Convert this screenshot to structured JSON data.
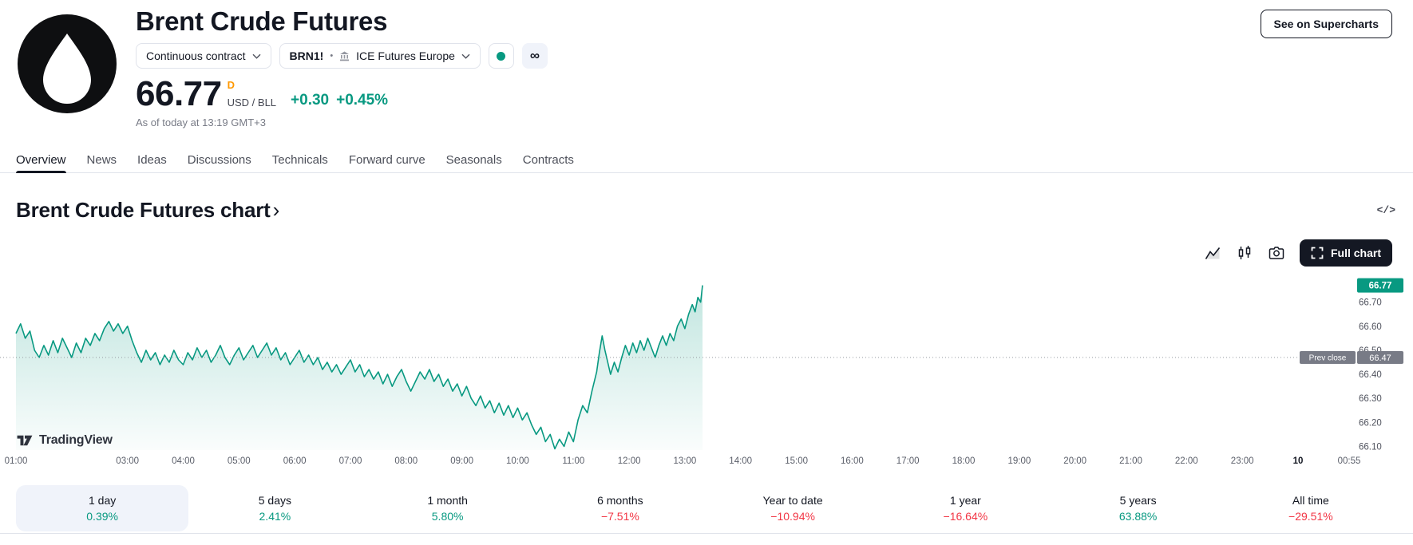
{
  "header": {
    "title": "Brent Crude Futures",
    "logo_icon": "oil-drop-icon",
    "contract_dropdown_label": "Continuous contract",
    "symbol": "BRN1!",
    "symbol_separator": "•",
    "exchange": "ICE Futures Europe",
    "market_status_icon": "market-open-green-dot",
    "continuous_glyph": "∞",
    "price": "66.77",
    "session_letter": "D",
    "currency_unit": "USD / BLL",
    "change_abs": "+0.30",
    "change_pct": "+0.45%",
    "as_of": "As of today at 13:19 GMT+3",
    "see_on_supercharts": "See on Supercharts"
  },
  "tabs": [
    {
      "label": "Overview",
      "active": true
    },
    {
      "label": "News"
    },
    {
      "label": "Ideas"
    },
    {
      "label": "Discussions"
    },
    {
      "label": "Technicals"
    },
    {
      "label": "Forward curve"
    },
    {
      "label": "Seasonals"
    },
    {
      "label": "Contracts"
    }
  ],
  "section": {
    "title": "Brent Crude Futures chart",
    "chevron": "›",
    "embed_icon": "code-embed-icon"
  },
  "chart_toolbar": {
    "full_chart_label": "Full chart"
  },
  "watermark": {
    "label": "TradingView"
  },
  "colors": {
    "positive": "#089981",
    "negative": "#f23645",
    "session_letter": "#ff9800",
    "last_price_badge": "#089981",
    "prev_close_badge": "#787b86",
    "active_tab_underline": "#131722"
  },
  "chart_data": {
    "type": "area",
    "symbol": "BRN1!",
    "title": "Brent Crude Futures chart",
    "x_unit": "minutes since 00:00, today",
    "x_domain_minutes": [
      60,
      1495
    ],
    "y_domain": [
      66.085,
      66.855
    ],
    "last_price": 66.77,
    "prev_close": 66.47,
    "prev_close_label": "Prev close",
    "line_color": "#089981",
    "fill_top": "rgba(8,153,129,0.25)",
    "fill_bottom": "rgba(8,153,129,0.02)",
    "prev_close_color": "#787b86",
    "grid": false,
    "y_ticks": [
      66.7,
      66.6,
      66.5,
      66.4,
      66.3,
      66.2,
      66.1
    ],
    "x_ticks": [
      {
        "label": "01:00",
        "t": 60
      },
      {
        "label": "03:00",
        "t": 180
      },
      {
        "label": "04:00",
        "t": 240
      },
      {
        "label": "05:00",
        "t": 300
      },
      {
        "label": "06:00",
        "t": 360
      },
      {
        "label": "07:00",
        "t": 420
      },
      {
        "label": "08:00",
        "t": 480
      },
      {
        "label": "09:00",
        "t": 540
      },
      {
        "label": "10:00",
        "t": 600
      },
      {
        "label": "11:00",
        "t": 660
      },
      {
        "label": "12:00",
        "t": 720
      },
      {
        "label": "13:00",
        "t": 780
      },
      {
        "label": "14:00",
        "t": 840
      },
      {
        "label": "15:00",
        "t": 900
      },
      {
        "label": "16:00",
        "t": 960
      },
      {
        "label": "17:00",
        "t": 1020
      },
      {
        "label": "18:00",
        "t": 1080
      },
      {
        "label": "19:00",
        "t": 1140
      },
      {
        "label": "20:00",
        "t": 1200
      },
      {
        "label": "21:00",
        "t": 1260
      },
      {
        "label": "22:00",
        "t": 1320
      },
      {
        "label": "23:00",
        "t": 1380
      },
      {
        "label": "10",
        "t": 1440,
        "major": true
      },
      {
        "label": "00:55",
        "t": 1495
      }
    ],
    "points": [
      [
        60,
        66.57
      ],
      [
        65,
        66.61
      ],
      [
        70,
        66.55
      ],
      [
        75,
        66.58
      ],
      [
        80,
        66.5
      ],
      [
        85,
        66.47
      ],
      [
        90,
        66.52
      ],
      [
        95,
        66.48
      ],
      [
        100,
        66.54
      ],
      [
        105,
        66.49
      ],
      [
        110,
        66.55
      ],
      [
        115,
        66.51
      ],
      [
        120,
        66.47
      ],
      [
        125,
        66.53
      ],
      [
        130,
        66.49
      ],
      [
        135,
        66.55
      ],
      [
        140,
        66.52
      ],
      [
        145,
        66.57
      ],
      [
        150,
        66.54
      ],
      [
        155,
        66.59
      ],
      [
        160,
        66.62
      ],
      [
        165,
        66.58
      ],
      [
        170,
        66.61
      ],
      [
        175,
        66.57
      ],
      [
        180,
        66.6
      ],
      [
        185,
        66.54
      ],
      [
        190,
        66.49
      ],
      [
        195,
        66.45
      ],
      [
        200,
        66.5
      ],
      [
        205,
        66.46
      ],
      [
        210,
        66.49
      ],
      [
        215,
        66.44
      ],
      [
        220,
        66.48
      ],
      [
        225,
        66.45
      ],
      [
        230,
        66.5
      ],
      [
        235,
        66.46
      ],
      [
        240,
        66.44
      ],
      [
        245,
        66.49
      ],
      [
        250,
        66.46
      ],
      [
        255,
        66.51
      ],
      [
        260,
        66.47
      ],
      [
        265,
        66.5
      ],
      [
        270,
        66.45
      ],
      [
        275,
        66.48
      ],
      [
        280,
        66.52
      ],
      [
        285,
        66.47
      ],
      [
        290,
        66.44
      ],
      [
        295,
        66.48
      ],
      [
        300,
        66.51
      ],
      [
        305,
        66.46
      ],
      [
        310,
        66.49
      ],
      [
        315,
        66.52
      ],
      [
        320,
        66.47
      ],
      [
        325,
        66.5
      ],
      [
        330,
        66.53
      ],
      [
        335,
        66.48
      ],
      [
        340,
        66.51
      ],
      [
        345,
        66.46
      ],
      [
        350,
        66.49
      ],
      [
        355,
        66.44
      ],
      [
        360,
        66.47
      ],
      [
        365,
        66.5
      ],
      [
        370,
        66.45
      ],
      [
        375,
        66.48
      ],
      [
        380,
        66.44
      ],
      [
        385,
        66.47
      ],
      [
        390,
        66.42
      ],
      [
        395,
        66.45
      ],
      [
        400,
        66.41
      ],
      [
        405,
        66.44
      ],
      [
        410,
        66.4
      ],
      [
        415,
        66.43
      ],
      [
        420,
        66.46
      ],
      [
        425,
        66.41
      ],
      [
        430,
        66.44
      ],
      [
        435,
        66.39
      ],
      [
        440,
        66.42
      ],
      [
        445,
        66.38
      ],
      [
        450,
        66.41
      ],
      [
        455,
        66.36
      ],
      [
        460,
        66.4
      ],
      [
        465,
        66.35
      ],
      [
        470,
        66.39
      ],
      [
        475,
        66.42
      ],
      [
        480,
        66.37
      ],
      [
        485,
        66.33
      ],
      [
        490,
        66.37
      ],
      [
        495,
        66.41
      ],
      [
        500,
        66.38
      ],
      [
        505,
        66.42
      ],
      [
        510,
        66.37
      ],
      [
        515,
        66.4
      ],
      [
        520,
        66.35
      ],
      [
        525,
        66.38
      ],
      [
        530,
        66.33
      ],
      [
        535,
        66.36
      ],
      [
        540,
        66.31
      ],
      [
        545,
        66.35
      ],
      [
        550,
        66.3
      ],
      [
        555,
        66.27
      ],
      [
        560,
        66.31
      ],
      [
        565,
        66.26
      ],
      [
        570,
        66.29
      ],
      [
        575,
        66.24
      ],
      [
        580,
        66.28
      ],
      [
        585,
        66.23
      ],
      [
        590,
        66.27
      ],
      [
        595,
        66.22
      ],
      [
        600,
        66.26
      ],
      [
        605,
        66.21
      ],
      [
        610,
        66.24
      ],
      [
        615,
        66.19
      ],
      [
        620,
        66.15
      ],
      [
        625,
        66.18
      ],
      [
        630,
        66.12
      ],
      [
        635,
        66.15
      ],
      [
        640,
        66.09
      ],
      [
        645,
        66.13
      ],
      [
        650,
        66.1
      ],
      [
        655,
        66.16
      ],
      [
        660,
        66.12
      ],
      [
        665,
        66.21
      ],
      [
        670,
        66.27
      ],
      [
        675,
        66.24
      ],
      [
        680,
        66.33
      ],
      [
        685,
        66.41
      ],
      [
        688,
        66.49
      ],
      [
        691,
        66.56
      ],
      [
        694,
        66.5
      ],
      [
        697,
        66.45
      ],
      [
        700,
        66.4
      ],
      [
        704,
        66.45
      ],
      [
        708,
        66.41
      ],
      [
        712,
        66.47
      ],
      [
        716,
        66.52
      ],
      [
        720,
        66.48
      ],
      [
        724,
        66.53
      ],
      [
        728,
        66.49
      ],
      [
        732,
        66.54
      ],
      [
        736,
        66.5
      ],
      [
        740,
        66.55
      ],
      [
        744,
        66.51
      ],
      [
        748,
        66.47
      ],
      [
        752,
        66.52
      ],
      [
        756,
        66.56
      ],
      [
        760,
        66.52
      ],
      [
        764,
        66.57
      ],
      [
        768,
        66.54
      ],
      [
        772,
        66.6
      ],
      [
        776,
        66.63
      ],
      [
        780,
        66.59
      ],
      [
        784,
        66.65
      ],
      [
        788,
        66.69
      ],
      [
        791,
        66.66
      ],
      [
        794,
        66.72
      ],
      [
        797,
        66.7
      ],
      [
        799,
        66.77
      ]
    ]
  },
  "periods": [
    {
      "label": "1 day",
      "change": "0.39%",
      "direction": "up",
      "active": true
    },
    {
      "label": "5 days",
      "change": "2.41%",
      "direction": "up"
    },
    {
      "label": "1 month",
      "change": "5.80%",
      "direction": "up"
    },
    {
      "label": "6 months",
      "change": "−7.51%",
      "direction": "down"
    },
    {
      "label": "Year to date",
      "change": "−10.94%",
      "direction": "down"
    },
    {
      "label": "1 year",
      "change": "−16.64%",
      "direction": "down"
    },
    {
      "label": "5 years",
      "change": "63.88%",
      "direction": "up"
    },
    {
      "label": "All time",
      "change": "−29.51%",
      "direction": "down"
    }
  ]
}
